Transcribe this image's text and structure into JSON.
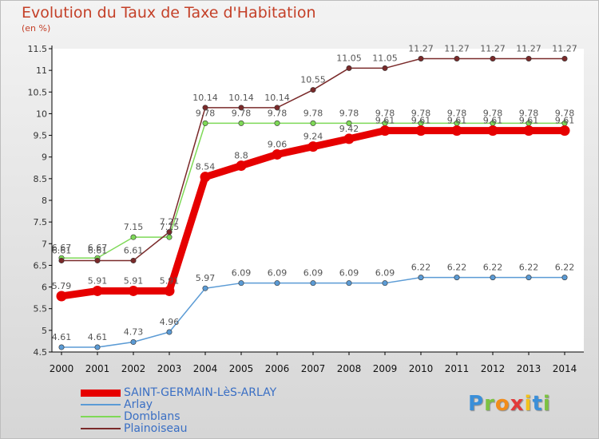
{
  "header": {
    "title": "Evolution du Taux de Taxe d'Habitation",
    "unit_label": "(en %)"
  },
  "logo": {
    "text": "Proxiti"
  },
  "chart_data": {
    "type": "line",
    "title": "Evolution du Taux de Taxe d'Habitation",
    "ylabel": "(en %)",
    "xlabel": "",
    "x": [
      "2000",
      "2001",
      "2002",
      "2003",
      "2004",
      "2005",
      "2006",
      "2007",
      "2008",
      "2009",
      "2010",
      "2011",
      "2012",
      "2013",
      "2014"
    ],
    "ylim": [
      4.5,
      11.5
    ],
    "yticks": [
      "4.5",
      "5",
      "5.5",
      "6",
      "6.5",
      "7",
      "7.5",
      "8",
      "8.5",
      "9",
      "9.5",
      "10",
      "10.5",
      "11",
      "11.5"
    ],
    "grid": false,
    "legend_position": "bottom-left",
    "series": [
      {
        "name": "SAINT-GERMAIN-LèS-ARLAY",
        "color": "#e60000",
        "values": [
          5.79,
          5.91,
          5.91,
          5.91,
          8.54,
          8.8,
          9.06,
          9.24,
          9.42,
          9.61,
          9.61,
          9.61,
          9.61,
          9.61,
          9.61
        ],
        "labels": [
          "5.79",
          "5.91",
          "5.91",
          "5.91",
          "8.54",
          "8.8",
          "9.06",
          "9.24",
          "9.42",
          "9.61",
          "9.61",
          "9.61",
          "9.61",
          "9.61",
          "9.61"
        ]
      },
      {
        "name": "Arlay",
        "color": "#5b9bd5",
        "values": [
          4.61,
          4.61,
          4.73,
          4.96,
          5.97,
          6.09,
          6.09,
          6.09,
          6.09,
          6.09,
          6.22,
          6.22,
          6.22,
          6.22,
          6.22
        ],
        "labels": [
          "4.61",
          "4.61",
          "4.73",
          "4.96",
          "5.97",
          "6.09",
          "6.09",
          "6.09",
          "6.09",
          "6.09",
          "6.22",
          "6.22",
          "6.22",
          "6.22",
          "6.22"
        ]
      },
      {
        "name": "Domblans",
        "color": "#7ed957",
        "values": [
          6.67,
          6.67,
          7.15,
          7.15,
          9.78,
          9.78,
          9.78,
          9.78,
          9.78,
          9.78,
          9.78,
          9.78,
          9.78,
          9.78,
          9.78
        ],
        "labels": [
          "6.67",
          "6.67",
          "7.15",
          "7.15",
          "9.78",
          "9.78",
          "9.78",
          "9.78",
          "9.78",
          "9.78",
          "9.78",
          "9.78",
          "9.78",
          "9.78",
          "9.78"
        ]
      },
      {
        "name": "Plainoiseau",
        "color": "#7a2a2a",
        "values": [
          6.61,
          6.61,
          6.61,
          7.27,
          10.14,
          10.14,
          10.14,
          10.55,
          11.05,
          11.05,
          11.27,
          11.27,
          11.27,
          11.27,
          11.27
        ],
        "labels": [
          "6.61",
          "6.61",
          "6.61",
          "7.27",
          "10.14",
          "10.14",
          "10.14",
          "10.55",
          "11.05",
          "11.05",
          "11.27",
          "11.27",
          "11.27",
          "11.27",
          "11.27"
        ]
      }
    ]
  }
}
